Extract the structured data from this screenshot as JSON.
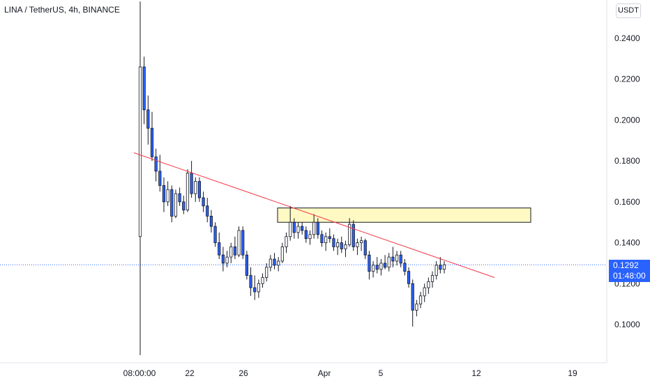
{
  "header": {
    "title": "LINA / TetherUS, 4h, BINANCE",
    "currency": "USDT"
  },
  "last_price": {
    "value": "0.1292",
    "countdown": "01:48:00"
  },
  "colors": {
    "up": "#ffffff",
    "down": "#2962ff",
    "wick": "#131722",
    "trendline": "#f23645",
    "zone_fill": "#fff9c4",
    "zone_border": "#131722",
    "price_line": "#2962ff",
    "axis_text": "#131722"
  },
  "chart_data": {
    "type": "candlestick",
    "title": "LINA / TetherUS, 4h, BINANCE",
    "ylabel": "USDT",
    "ylim": [
      0.082,
      0.258
    ],
    "y_ticks": [
      "0.1000",
      "0.1200",
      "0.1400",
      "0.1600",
      "0.1800",
      "0.2000",
      "0.2200",
      "0.2400"
    ],
    "x_ticks": [
      "08:00:00",
      "22",
      "26",
      "Apr",
      "5",
      "12",
      "19"
    ],
    "grid": false,
    "candles": [
      [
        0.143,
        0.258,
        0.085,
        0.226
      ],
      [
        0.226,
        0.231,
        0.198,
        0.205
      ],
      [
        0.205,
        0.212,
        0.188,
        0.196
      ],
      [
        0.196,
        0.204,
        0.18,
        0.182
      ],
      [
        0.182,
        0.186,
        0.17,
        0.175
      ],
      [
        0.175,
        0.183,
        0.165,
        0.168
      ],
      [
        0.168,
        0.172,
        0.155,
        0.16
      ],
      [
        0.16,
        0.17,
        0.158,
        0.166
      ],
      [
        0.166,
        0.168,
        0.15,
        0.153
      ],
      [
        0.153,
        0.166,
        0.152,
        0.164
      ],
      [
        0.164,
        0.167,
        0.158,
        0.16
      ],
      [
        0.16,
        0.163,
        0.154,
        0.156
      ],
      [
        0.156,
        0.176,
        0.155,
        0.174
      ],
      [
        0.174,
        0.18,
        0.162,
        0.164
      ],
      [
        0.164,
        0.172,
        0.16,
        0.17
      ],
      [
        0.17,
        0.172,
        0.16,
        0.162
      ],
      [
        0.162,
        0.165,
        0.155,
        0.158
      ],
      [
        0.158,
        0.162,
        0.15,
        0.153
      ],
      [
        0.153,
        0.156,
        0.145,
        0.148
      ],
      [
        0.148,
        0.15,
        0.138,
        0.14
      ],
      [
        0.14,
        0.145,
        0.132,
        0.134
      ],
      [
        0.134,
        0.138,
        0.126,
        0.13
      ],
      [
        0.13,
        0.136,
        0.128,
        0.133
      ],
      [
        0.133,
        0.14,
        0.13,
        0.138
      ],
      [
        0.138,
        0.143,
        0.132,
        0.134
      ],
      [
        0.134,
        0.148,
        0.133,
        0.146
      ],
      [
        0.146,
        0.148,
        0.132,
        0.134
      ],
      [
        0.134,
        0.136,
        0.122,
        0.124
      ],
      [
        0.124,
        0.128,
        0.114,
        0.118
      ],
      [
        0.118,
        0.124,
        0.112,
        0.116
      ],
      [
        0.116,
        0.122,
        0.113,
        0.12
      ],
      [
        0.12,
        0.125,
        0.118,
        0.123
      ],
      [
        0.123,
        0.13,
        0.121,
        0.128
      ],
      [
        0.128,
        0.134,
        0.126,
        0.132
      ],
      [
        0.132,
        0.135,
        0.127,
        0.129
      ],
      [
        0.129,
        0.133,
        0.126,
        0.131
      ],
      [
        0.131,
        0.14,
        0.13,
        0.138
      ],
      [
        0.138,
        0.145,
        0.135,
        0.143
      ],
      [
        0.143,
        0.158,
        0.141,
        0.15
      ],
      [
        0.15,
        0.152,
        0.142,
        0.145
      ],
      [
        0.145,
        0.15,
        0.142,
        0.148
      ],
      [
        0.148,
        0.15,
        0.144,
        0.146
      ],
      [
        0.146,
        0.148,
        0.14,
        0.142
      ],
      [
        0.142,
        0.146,
        0.139,
        0.144
      ],
      [
        0.144,
        0.154,
        0.142,
        0.15
      ],
      [
        0.15,
        0.152,
        0.142,
        0.144
      ],
      [
        0.144,
        0.146,
        0.138,
        0.14
      ],
      [
        0.14,
        0.145,
        0.136,
        0.143
      ],
      [
        0.143,
        0.147,
        0.14,
        0.142
      ],
      [
        0.142,
        0.144,
        0.136,
        0.138
      ],
      [
        0.138,
        0.142,
        0.134,
        0.14
      ],
      [
        0.14,
        0.143,
        0.135,
        0.137
      ],
      [
        0.137,
        0.141,
        0.133,
        0.139
      ],
      [
        0.139,
        0.152,
        0.138,
        0.149
      ],
      [
        0.149,
        0.151,
        0.136,
        0.138
      ],
      [
        0.138,
        0.142,
        0.134,
        0.14
      ],
      [
        0.14,
        0.143,
        0.136,
        0.141
      ],
      [
        0.141,
        0.142,
        0.132,
        0.134
      ],
      [
        0.134,
        0.136,
        0.122,
        0.126
      ],
      [
        0.126,
        0.131,
        0.123,
        0.129
      ],
      [
        0.129,
        0.133,
        0.125,
        0.127
      ],
      [
        0.127,
        0.132,
        0.124,
        0.13
      ],
      [
        0.13,
        0.134,
        0.127,
        0.128
      ],
      [
        0.128,
        0.135,
        0.126,
        0.133
      ],
      [
        0.133,
        0.138,
        0.128,
        0.131
      ],
      [
        0.131,
        0.136,
        0.129,
        0.134
      ],
      [
        0.134,
        0.136,
        0.128,
        0.13
      ],
      [
        0.13,
        0.132,
        0.124,
        0.126
      ],
      [
        0.126,
        0.128,
        0.118,
        0.12
      ],
      [
        0.12,
        0.122,
        0.099,
        0.107
      ],
      [
        0.107,
        0.112,
        0.104,
        0.11
      ],
      [
        0.11,
        0.116,
        0.108,
        0.114
      ],
      [
        0.114,
        0.12,
        0.111,
        0.118
      ],
      [
        0.118,
        0.123,
        0.115,
        0.121
      ],
      [
        0.121,
        0.126,
        0.118,
        0.124
      ],
      [
        0.124,
        0.131,
        0.122,
        0.129
      ],
      [
        0.129,
        0.133,
        0.125,
        0.127
      ],
      [
        0.127,
        0.131,
        0.125,
        0.1292
      ]
    ],
    "trendline": {
      "from": [
        0.184
      ],
      "to": [
        0.123
      ]
    },
    "zone": {
      "top": 0.157,
      "bottom": 0.15
    },
    "last_value": 0.1292
  }
}
